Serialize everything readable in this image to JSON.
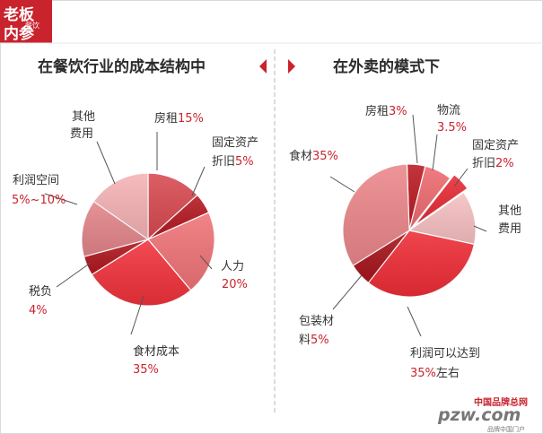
{
  "badge": {
    "line1": "老板",
    "line2": "内参",
    "small": "餐饮"
  },
  "left": {
    "title": "在餐饮行业的成本结构中"
  },
  "right": {
    "title": "在外卖的模式下"
  },
  "watermark": {
    "top": "中国品牌总网",
    "main": "pzw.com",
    "bottom": "品牌中国门户"
  },
  "colors": {
    "brand": "#c9232e",
    "accent": "#e8353f",
    "dark": "#ae1a23",
    "pink": "#f6b3b6",
    "rose": "#ee8a8d"
  },
  "chart_data": [
    {
      "type": "pie",
      "title": "在餐饮行业的成本结构中",
      "slices": [
        {
          "label": "房租",
          "value": "15%",
          "color": "#d84a51"
        },
        {
          "label": "固定资产折旧",
          "value": "5%",
          "color": "#b51922"
        },
        {
          "label": "人力",
          "value": "20%",
          "color": "#f07478"
        },
        {
          "label": "食材成本",
          "value": "35%",
          "color": "#f2323c"
        },
        {
          "label": "税负",
          "value": "4%",
          "color": "#b0171f"
        },
        {
          "label": "利润空间",
          "value": "5%~10%",
          "color": "#e3858a"
        },
        {
          "label": "其他费用",
          "value": "",
          "color": "#f6b3b6"
        }
      ]
    },
    {
      "type": "pie",
      "title": "在外卖的模式下",
      "slices": [
        {
          "label": "房租",
          "value": "3%",
          "color": "#bb1a22"
        },
        {
          "label": "物流",
          "value": "3.5%",
          "color": "#ee6b70"
        },
        {
          "label": "固定资产折旧",
          "value": "2%",
          "color": "#e82b35"
        },
        {
          "label": "其他费用",
          "value": "",
          "color": "#f7c0c2"
        },
        {
          "label": "利润可以达到",
          "value": "35%左右",
          "color": "#ef2d37"
        },
        {
          "label": "包装材料",
          "value": "5%",
          "color": "#a8141c"
        },
        {
          "label": "食材",
          "value": "35%",
          "color": "#ec878b"
        }
      ]
    }
  ]
}
